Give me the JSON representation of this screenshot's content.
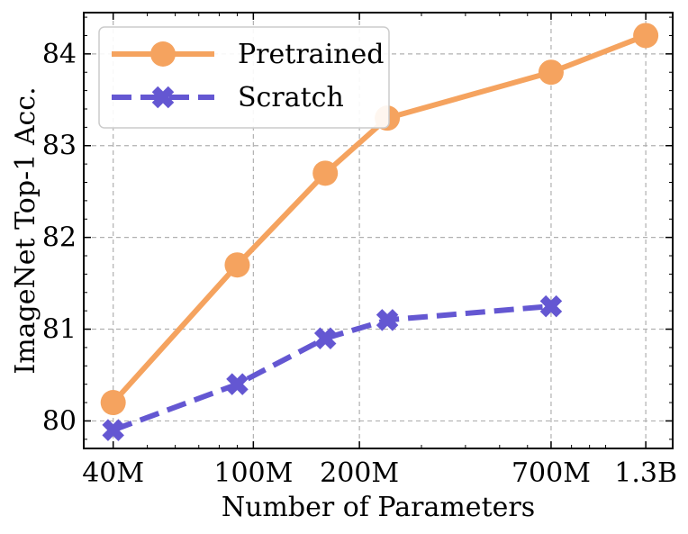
{
  "chart_data": {
    "type": "line",
    "title": "",
    "xlabel": "Number of Parameters",
    "ylabel": "ImageNet Top-1 Acc.",
    "x_scale": "log",
    "x_ticks": [
      {
        "value": 40,
        "label": "40M"
      },
      {
        "value": 100,
        "label": "100M"
      },
      {
        "value": 200,
        "label": "200M"
      },
      {
        "value": 700,
        "label": "700M"
      },
      {
        "value": 1300,
        "label": "1.3B"
      }
    ],
    "y_ticks": [
      {
        "value": 80,
        "label": "80"
      },
      {
        "value": 81,
        "label": "81"
      },
      {
        "value": 82,
        "label": "82"
      },
      {
        "value": 83,
        "label": "83"
      },
      {
        "value": 84,
        "label": "84"
      }
    ],
    "xlim": [
      33,
      1550
    ],
    "ylim": [
      79.7,
      84.45
    ],
    "grid": true,
    "legend_position": "top-left",
    "series": [
      {
        "name": "Pretrained",
        "color": "#f5a35f",
        "line_style": "solid",
        "marker": "circle",
        "x": [
          40,
          90,
          160,
          240,
          700,
          1300
        ],
        "values": [
          80.2,
          81.7,
          82.7,
          83.3,
          83.8,
          84.2
        ]
      },
      {
        "name": "Scratch",
        "color": "#6457d2",
        "line_style": "dashed",
        "marker": "x",
        "x": [
          40,
          90,
          160,
          240,
          700
        ],
        "values": [
          79.9,
          80.4,
          80.9,
          81.1,
          81.25
        ]
      }
    ]
  }
}
